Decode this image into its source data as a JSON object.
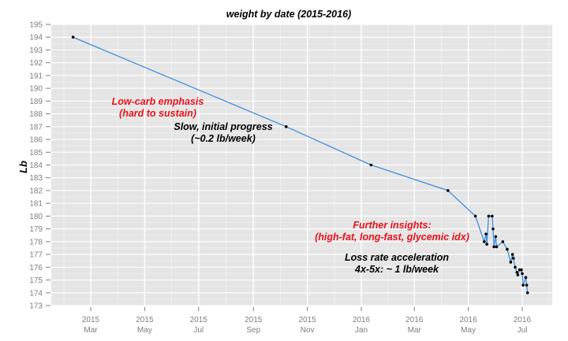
{
  "chart_data": {
    "type": "line",
    "title": "weight by date (2015-2016)",
    "xlabel": "",
    "ylabel": "Lb",
    "ylim": [
      173,
      195
    ],
    "xlim": [
      "2015-01-15",
      "2016-07-25"
    ],
    "grid": true,
    "yticks": [
      173,
      174,
      175,
      176,
      177,
      178,
      179,
      180,
      181,
      182,
      183,
      184,
      185,
      186,
      187,
      188,
      189,
      190,
      191,
      192,
      193,
      194,
      195
    ],
    "xticks": [
      {
        "date": "2015-03-01",
        "year": "2015",
        "month": "Mar"
      },
      {
        "date": "2015-05-01",
        "year": "2015",
        "month": "May"
      },
      {
        "date": "2015-07-01",
        "year": "2015",
        "month": "Jul"
      },
      {
        "date": "2015-09-01",
        "year": "2015",
        "month": "Sep"
      },
      {
        "date": "2015-11-01",
        "year": "2015",
        "month": "Nov"
      },
      {
        "date": "2016-01-01",
        "year": "2016",
        "month": "Jan"
      },
      {
        "date": "2016-03-01",
        "year": "2016",
        "month": "Mar"
      },
      {
        "date": "2016-05-01",
        "year": "2016",
        "month": "May"
      },
      {
        "date": "2016-07-01",
        "year": "2016",
        "month": "Jul"
      }
    ],
    "series": [
      {
        "name": "weight",
        "color": "#3f8fe0",
        "x": [
          "2015-02-09",
          "2015-10-08",
          "2016-01-12",
          "2016-04-08",
          "2016-05-09",
          "2016-05-19",
          "2016-05-21",
          "2016-05-22",
          "2016-05-24",
          "2016-05-28",
          "2016-05-29",
          "2016-05-30",
          "2016-06-01",
          "2016-06-02",
          "2016-06-09",
          "2016-06-14",
          "2016-06-18",
          "2016-06-20",
          "2016-06-21",
          "2016-06-23",
          "2016-06-25",
          "2016-06-26",
          "2016-06-28",
          "2016-06-30",
          "2016-07-01",
          "2016-07-02",
          "2016-07-05",
          "2016-07-06",
          "2016-07-07"
        ],
        "y": [
          194,
          187,
          184,
          182,
          180,
          178,
          178.6,
          177.8,
          180,
          180,
          179,
          177.6,
          178.4,
          177.6,
          178,
          177.4,
          176.4,
          177,
          176.7,
          176,
          175.6,
          175.4,
          175.8,
          175.8,
          175.5,
          174.6,
          175.2,
          174.6,
          174
        ]
      }
    ],
    "annotations": [
      {
        "lines": [
          "Low-carb emphasis",
          "(hard to sustain)"
        ],
        "color": "#e8101a",
        "date": "2015-04-28",
        "y": 186.9
      },
      {
        "lines": [
          "Slow, initial progress",
          "(~0.2 lb/week)"
        ],
        "color": "#000000",
        "date": "2015-07-losing",
        "y": 186.2
      },
      {
        "lines": [
          "Further insights:",
          "(high-fat, long-fast, glycemic idx)"
        ],
        "color": "#e8101a",
        "date": "2016-01-28",
        "y": 178.9
      },
      {
        "lines": [
          "Loss rate acceleration",
          "4x-5x: ~ 1 lb/week"
        ],
        "color": "#000000",
        "date": "2016-02-02",
        "y": 176.4
      }
    ]
  }
}
